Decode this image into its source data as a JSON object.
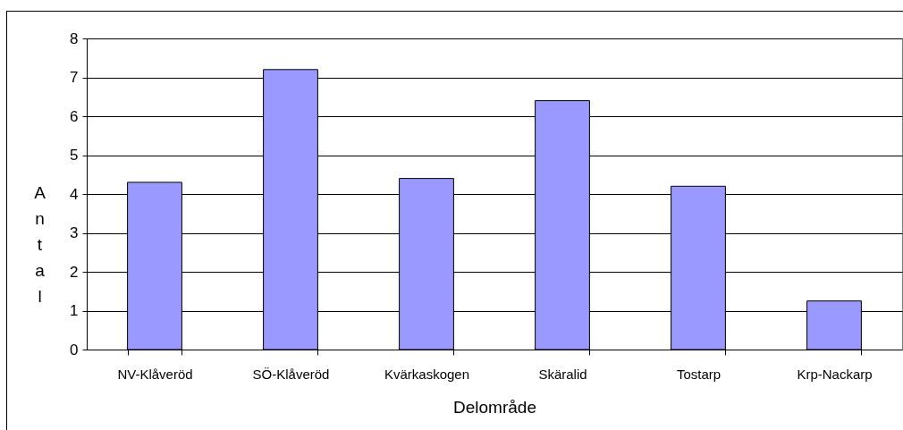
{
  "chart_data": {
    "type": "bar",
    "xlabel": "Delområde",
    "ylabel": "Antal",
    "categories": [
      "NV-Klåveröd",
      "SÖ-Klåveröd",
      "Kvärkaskogen",
      "Skäralid",
      "Tostarp",
      "Krp-Nackarp"
    ],
    "values": [
      4.3,
      7.2,
      4.4,
      6.4,
      4.2,
      1.25
    ],
    "color": "#9999ff",
    "ylim": [
      0,
      8
    ],
    "yticks": [
      0,
      1,
      2,
      3,
      4,
      5,
      6,
      7,
      8
    ],
    "grid": "y"
  }
}
